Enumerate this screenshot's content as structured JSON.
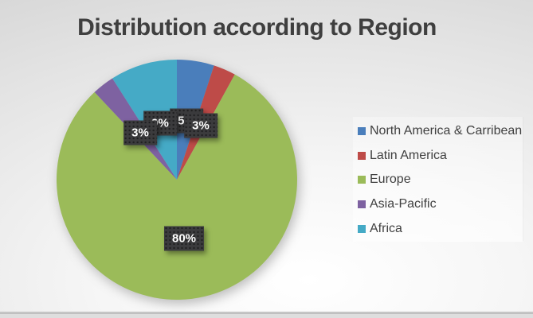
{
  "chart_data": {
    "type": "pie",
    "title": "Distribution according to Region",
    "categories": [
      "North America & Carribean",
      "Latin America",
      "Europe",
      "Asia-Pacific",
      "Africa"
    ],
    "values": [
      5,
      3,
      80,
      3,
      9
    ],
    "data_labels": [
      "5%",
      "3%",
      "80%",
      "3%",
      "9%"
    ],
    "colors": [
      "#4A7EBB",
      "#BE4B48",
      "#9BBB59",
      "#7E62A1",
      "#45AAC6"
    ],
    "start_angle_deg": 0,
    "direction": "clockwise",
    "legend_position": "right",
    "title_color": "#3f3f3f",
    "label_box_color": "#3b3b3d",
    "label_text_color": "#ffffff",
    "legend_text_color": "#404040"
  }
}
